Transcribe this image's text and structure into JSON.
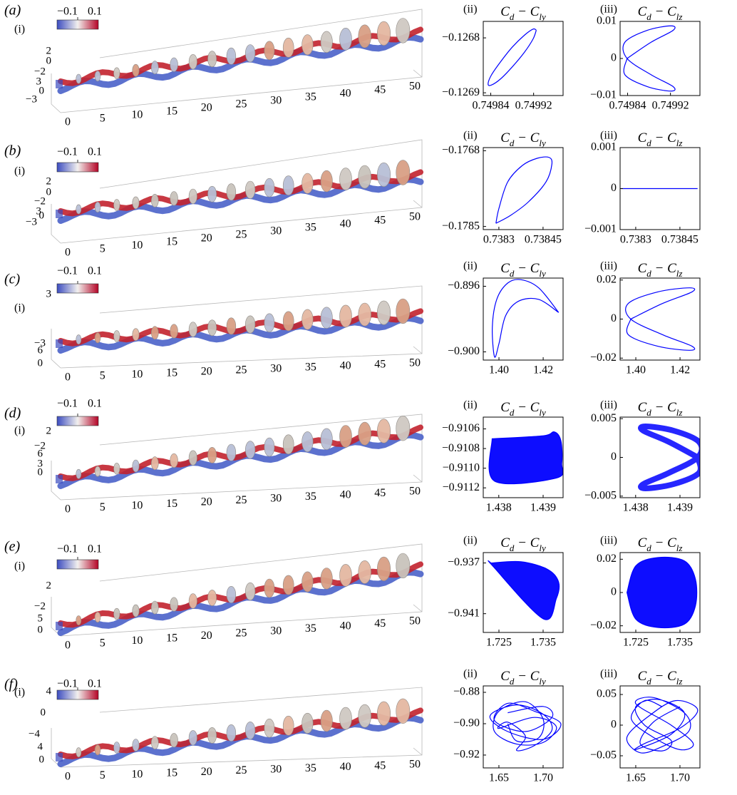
{
  "panels": [
    {
      "label": "(a)",
      "view_label": "(i)",
      "colorbar_ticks": [
        "−0.1",
        "0.1"
      ],
      "x_ticks": [
        "0",
        "5",
        "10",
        "15",
        "20",
        "25",
        "30",
        "35",
        "40",
        "45",
        "50"
      ],
      "side_ticks": [
        "2",
        "0",
        "−2",
        "3",
        "0",
        "−3"
      ]
    },
    {
      "label": "(b)",
      "view_label": "(i)",
      "colorbar_ticks": [
        "−0.1",
        "0.1"
      ],
      "x_ticks": [
        "0",
        "5",
        "10",
        "15",
        "20",
        "25",
        "30",
        "35",
        "40",
        "45",
        "50"
      ],
      "side_ticks": [
        "2",
        "0",
        "−2",
        "3",
        "0",
        "−3"
      ]
    },
    {
      "label": "(c)",
      "view_label": "(i)",
      "colorbar_ticks": [
        "−0.1",
        "0.1"
      ],
      "x_ticks": [
        "0",
        "5",
        "10",
        "15",
        "20",
        "25",
        "30",
        "35",
        "40",
        "45",
        "50"
      ],
      "side_ticks": [
        "3",
        "−3",
        "6",
        "0"
      ]
    },
    {
      "label": "(d)",
      "view_label": "(i)",
      "colorbar_ticks": [
        "−0.1",
        "0.1"
      ],
      "x_ticks": [
        "0",
        "5",
        "10",
        "15",
        "20",
        "25",
        "30",
        "35",
        "40",
        "45",
        "50"
      ],
      "side_ticks": [
        "2",
        "−2",
        "6",
        "3",
        "0"
      ]
    },
    {
      "label": "(e)",
      "view_label": "(i)",
      "colorbar_ticks": [
        "−0.1",
        "0.1"
      ],
      "x_ticks": [
        "0",
        "5",
        "10",
        "15",
        "20",
        "25",
        "30",
        "35",
        "40",
        "45",
        "50"
      ],
      "side_ticks": [
        "2",
        "−2",
        "5",
        "0"
      ]
    },
    {
      "label": "(f)",
      "view_label": "(i)",
      "colorbar_ticks": [
        "−0.1",
        "0.1"
      ],
      "x_ticks": [
        "0",
        "5",
        "10",
        "15",
        "20",
        "25",
        "30",
        "35",
        "40",
        "45",
        "50"
      ],
      "side_ticks": [
        "4",
        "0",
        "−4",
        "4",
        "0"
      ]
    }
  ],
  "chart_data": [
    {
      "type": "line",
      "label": "(ii)",
      "title": [
        "C",
        "d",
        " − C",
        "ly"
      ],
      "xlim": [
        0.749826,
        0.749975
      ],
      "ylim": [
        -0.126905,
        -0.12677
      ],
      "xticks": [
        0.74984,
        0.74992
      ],
      "yticks": [
        {
          "value": -0.1268,
          "label": "−0.1268"
        },
        {
          "value": -0.1269,
          "label": "−0.1269"
        }
      ],
      "series": [
        {
          "color": "#0000ff",
          "x": [
            0.749925,
            0.749919,
            0.749903,
            0.74988,
            0.749858,
            0.749841,
            0.749835,
            0.749841,
            0.749858,
            0.74988,
            0.749903,
            0.749919,
            0.749925
          ],
          "y": [
            -0.126786,
            -0.126784,
            -0.126795,
            -0.126817,
            -0.126844,
            -0.126868,
            -0.126884,
            -0.126886,
            -0.126875,
            -0.126853,
            -0.126826,
            -0.126802,
            -0.126786
          ]
        }
      ]
    },
    {
      "type": "line",
      "label": "(iii)",
      "title": [
        "C",
        "d",
        " − C",
        "lz"
      ],
      "xlim": [
        0.749826,
        0.749975
      ],
      "ylim": [
        -0.01,
        0.01
      ],
      "xticks": [
        0.74984,
        0.74992
      ],
      "yticks": [
        {
          "value": -0.01,
          "label": "−0.01"
        },
        0,
        0.01
      ],
      "series": [
        {
          "color": "#0000ff",
          "x": [
            0.749839,
            0.749884,
            0.749925,
            0.749921,
            0.749877,
            0.749835,
            0.749839,
            0.749884,
            0.749925,
            0.749921,
            0.749877,
            0.749835,
            0.749839
          ],
          "y": [
            0,
            0.0044,
            0.0076,
            0.0088,
            0.0076,
            0.0044,
            0,
            -0.0044,
            -0.0076,
            -0.0088,
            -0.0076,
            -0.0044,
            0
          ]
        }
      ]
    },
    {
      "type": "line",
      "label": "(ii)",
      "title": [
        "C",
        "d",
        " − C",
        "ly"
      ],
      "xlim": [
        0.738247,
        0.738518
      ],
      "ylim": [
        -0.17857,
        -0.17673
      ],
      "xticks": [
        0.7383,
        0.73845
      ],
      "yticks": [
        {
          "value": -0.1768,
          "label": "−0.1768"
        },
        {
          "value": -0.1785,
          "label": "−0.1785"
        }
      ],
      "series": [
        {
          "color": "#0000ff",
          "x": [
            0.73829,
            0.7383,
            0.73833,
            0.73838,
            0.73843,
            0.73847,
            0.73848,
            0.73846,
            0.7384,
            0.73834,
            0.73829
          ],
          "y": [
            -0.17843,
            -0.1781,
            -0.1775,
            -0.17713,
            -0.17697,
            -0.17695,
            -0.1771,
            -0.1775,
            -0.17795,
            -0.17825,
            -0.17843
          ]
        }
      ]
    },
    {
      "type": "line",
      "label": "(iii)",
      "title": [
        "C",
        "d",
        " − C",
        "lz"
      ],
      "xlim": [
        0.738247,
        0.738518
      ],
      "ylim": [
        -0.001,
        0.001
      ],
      "xticks": [
        0.7383,
        0.73845
      ],
      "yticks": [
        {
          "value": -0.001,
          "label": "−0.001"
        },
        0,
        0.001
      ],
      "series": [
        {
          "color": "#0000ff",
          "x": [
            0.73825,
            0.73851
          ],
          "y": [
            0,
            0
          ]
        }
      ]
    },
    {
      "type": "line",
      "label": "(ii)",
      "title": [
        "C",
        "d",
        " − C",
        "ly"
      ],
      "xlim": [
        1.3929,
        1.429
      ],
      "ylim": [
        -0.9005,
        -0.8955
      ],
      "xticks": [
        {
          "value": 1.4,
          "label": "1.40"
        },
        {
          "value": 1.42,
          "label": "1.42"
        }
      ],
      "yticks": [
        {
          "value": -0.896,
          "label": "−0.896"
        },
        {
          "value": -0.9,
          "label": "−0.900"
        }
      ],
      "series": [
        {
          "color": "#0000ff",
          "x": [
            1.427,
            1.418,
            1.41,
            1.404,
            1.399,
            1.397,
            1.398,
            1.4,
            1.403,
            1.409,
            1.418,
            1.427
          ],
          "y": [
            -0.8976,
            -0.8961,
            -0.8956,
            -0.8958,
            -0.8968,
            -0.8985,
            -0.9003,
            -0.8995,
            -0.8978,
            -0.8969,
            -0.8968,
            -0.8976
          ]
        }
      ]
    },
    {
      "type": "line",
      "label": "(iii)",
      "title": [
        "C",
        "d",
        " − C",
        "lz"
      ],
      "xlim": [
        1.3929,
        1.429
      ],
      "ylim": [
        -0.021,
        0.021
      ],
      "xticks": [
        {
          "value": 1.4,
          "label": "1.40"
        },
        {
          "value": 1.42,
          "label": "1.42"
        }
      ],
      "yticks": [
        {
          "value": -0.02,
          "label": "−0.02"
        },
        0,
        0.02
      ],
      "series": [
        {
          "color": "#0000ff",
          "x": [
            1.3977,
            1.4121,
            1.4254,
            1.4243,
            1.4099,
            1.3966,
            1.3977,
            1.4121,
            1.4254,
            1.4243,
            1.4099,
            1.3966,
            1.3977
          ],
          "y": [
            0,
            0.008,
            0.0139,
            0.016,
            0.0139,
            0.008,
            0,
            -0.008,
            -0.0139,
            -0.016,
            -0.0139,
            -0.008,
            0
          ]
        }
      ]
    },
    {
      "type": "line",
      "label": "(ii)",
      "title": [
        "C",
        "d",
        " − C",
        "ly"
      ],
      "xlim": [
        1.43765,
        1.43945
      ],
      "ylim": [
        -0.9113,
        -0.91048
      ],
      "fill": true,
      "xticks": [
        1.438,
        1.439
      ],
      "yticks": [
        {
          "value": -0.9106,
          "label": "−0.9106"
        },
        {
          "value": -0.9108,
          "label": "−0.9108"
        },
        {
          "value": -0.911,
          "label": "−0.9110"
        },
        {
          "value": -0.9112,
          "label": "−0.9112"
        }
      ],
      "series": [
        {
          "color": "#0000ff",
          "x": [
            1.43785,
            1.439,
            1.43925,
            1.4394,
            1.43942,
            1.4393,
            1.4379,
            1.43785
          ],
          "y": [
            -0.9107,
            -0.91067,
            -0.91063,
            -0.91072,
            -0.91095,
            -0.9111,
            -0.91113,
            -0.9107
          ]
        }
      ]
    },
    {
      "type": "line",
      "label": "(iii)",
      "title": [
        "C",
        "d",
        " − C",
        "lz"
      ],
      "xlim": [
        1.43765,
        1.43945
      ],
      "ylim": [
        -0.0052,
        0.0052
      ],
      "line_width": 8,
      "xticks": [
        1.438,
        1.439
      ],
      "yticks": [
        {
          "value": -0.005,
          "label": "−0.005"
        },
        0,
        0.005
      ],
      "series": [
        {
          "color": "#0000ff",
          "x": [
            1.4394,
            1.43875,
            1.43817,
            1.43822,
            1.43885,
            1.43943,
            1.4394,
            1.43875,
            1.43817,
            1.43822,
            1.43885,
            1.43943,
            1.4394
          ],
          "y": [
            0,
            0.002,
            0.00346,
            0.004,
            0.00346,
            0.002,
            0,
            -0.002,
            -0.00346,
            -0.004,
            -0.00346,
            -0.002,
            0
          ]
        }
      ]
    },
    {
      "type": "line",
      "label": "(ii)",
      "title": [
        "C",
        "d",
        " − C",
        "ly"
      ],
      "xlim": [
        1.72145,
        1.73952
      ],
      "ylim": [
        -0.94248,
        -0.93618
      ],
      "fill": true,
      "xticks": [
        1.725,
        1.735
      ],
      "yticks": [
        {
          "value": -0.937,
          "label": "−0.937"
        },
        {
          "value": -0.941,
          "label": "−0.941"
        }
      ],
      "series": [
        {
          "color": "#0000ff",
          "x": [
            1.7232,
            1.73,
            1.736,
            1.7385,
            1.738,
            1.735,
            1.7235,
            1.7232
          ],
          "y": [
            -0.937,
            -0.9369,
            -0.9375,
            -0.9385,
            -0.9398,
            -0.9414,
            -0.9372,
            -0.937
          ]
        }
      ]
    },
    {
      "type": "line",
      "label": "(iii)",
      "title": [
        "C",
        "d",
        " − C",
        "lz"
      ],
      "xlim": [
        1.72145,
        1.73952
      ],
      "ylim": [
        -0.024,
        0.024
      ],
      "fill": true,
      "xticks": [
        1.725,
        1.735
      ],
      "yticks": [
        {
          "value": -0.02,
          "label": "−0.02"
        },
        0,
        0.02
      ],
      "series": [
        {
          "color": "#0000ff",
          "x": [
            1.723,
            1.725,
            1.73,
            1.736,
            1.7385,
            1.7385,
            1.736,
            1.73,
            1.725,
            1.723
          ],
          "y": [
            0,
            0.016,
            0.021,
            0.019,
            0.008,
            -0.008,
            -0.019,
            -0.021,
            -0.016,
            0
          ]
        }
      ]
    },
    {
      "type": "line",
      "label": "(ii)",
      "title": [
        "C",
        "d",
        " − C",
        "ly"
      ],
      "xlim": [
        1.6323,
        1.7226
      ],
      "ylim": [
        -0.9282,
        -0.8759
      ],
      "xticks": [
        1.65,
        {
          "value": 1.7,
          "label": "1.70"
        }
      ],
      "yticks": [
        {
          "value": -0.88,
          "label": "−0.88"
        },
        {
          "value": -0.9,
          "label": "−0.90"
        },
        {
          "value": -0.92,
          "label": "−0.92"
        }
      ],
      "series": [
        {
          "color": "#0000ff",
          "x": [
            1.66,
            1.7,
            1.71,
            1.68,
            1.645,
            1.66,
            1.69,
            1.72,
            1.7,
            1.66,
            1.64,
            1.67,
            1.7,
            1.71,
            1.69,
            1.67,
            1.68,
            1.66,
            1.65,
            1.69,
            1.715,
            1.7,
            1.67,
            1.645,
            1.65,
            1.68,
            1.7,
            1.695,
            1.67,
            1.66
          ],
          "y": [
            -0.893,
            -0.889,
            -0.896,
            -0.905,
            -0.898,
            -0.887,
            -0.892,
            -0.9,
            -0.91,
            -0.905,
            -0.895,
            -0.888,
            -0.894,
            -0.904,
            -0.914,
            -0.917,
            -0.908,
            -0.899,
            -0.903,
            -0.896,
            -0.902,
            -0.912,
            -0.913,
            -0.905,
            -0.892,
            -0.886,
            -0.897,
            -0.909,
            -0.911,
            -0.9
          ]
        }
      ]
    },
    {
      "type": "line",
      "label": "(iii)",
      "title": [
        "C",
        "d",
        " − C",
        "lz"
      ],
      "xlim": [
        1.6323,
        1.7226
      ],
      "ylim": [
        -0.0698,
        0.064
      ],
      "xticks": [
        1.65,
        {
          "value": 1.7,
          "label": "1.70"
        }
      ],
      "yticks": [
        {
          "value": -0.05,
          "label": "−0.05"
        },
        0,
        0.05
      ],
      "series": [
        {
          "color": "#0000ff",
          "x": [
            1.68,
            1.66,
            1.645,
            1.67,
            1.7,
            1.715,
            1.69,
            1.65,
            1.67,
            1.705,
            1.71,
            1.68,
            1.655,
            1.64,
            1.665,
            1.695,
            1.72,
            1.7,
            1.66,
            1.65,
            1.69,
            1.705,
            1.675,
            1.65,
            1.66,
            1.69,
            1.68,
            1.655,
            1.67,
            1.7
          ],
          "y": [
            0.03,
            0.04,
            0.01,
            -0.02,
            -0.04,
            -0.03,
            0,
            0.035,
            0.045,
            0.02,
            -0.01,
            -0.035,
            -0.045,
            -0.02,
            0.015,
            0.04,
            0.025,
            -0.005,
            -0.03,
            -0.04,
            -0.015,
            0.02,
            0.042,
            0.03,
            0,
            -0.025,
            -0.042,
            -0.03,
            0.005,
            0.03
          ]
        }
      ]
    }
  ]
}
